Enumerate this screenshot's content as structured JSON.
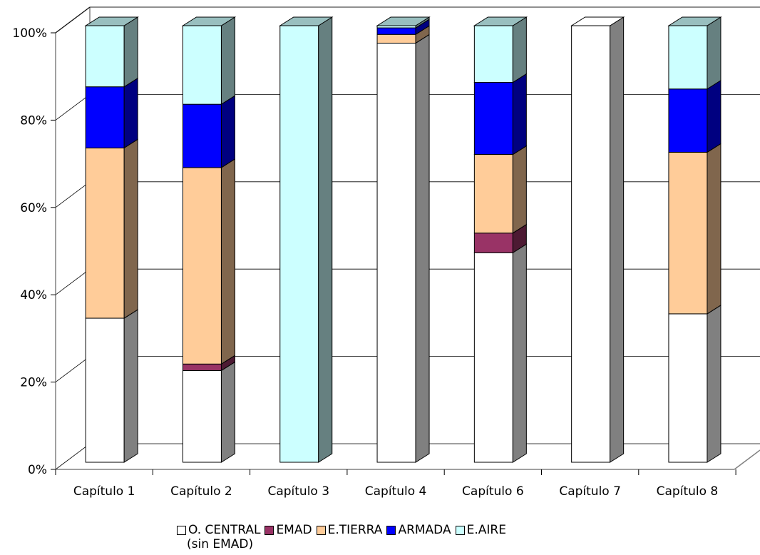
{
  "chart_data": {
    "type": "bar",
    "stacked": "percent",
    "style": "3d",
    "categories": [
      "Capítulo 1",
      "Capítulo 2",
      "Capítulo 3",
      "Capítulo 4",
      "Capítulo 6",
      "Capítulo 7",
      "Capítulo 8"
    ],
    "y_ticks": [
      "0%",
      "20%",
      "40%",
      "60%",
      "80%",
      "100%"
    ],
    "ylim": [
      0,
      100
    ],
    "grid": true,
    "legend_position": "bottom",
    "series": [
      {
        "name": "O. CENTRAL (sin EMAD)",
        "name_line1": "O. CENTRAL",
        "name_line2": "(sin EMAD)",
        "color": "#ffffff",
        "values": [
          33,
          21,
          0,
          96,
          48,
          100,
          34
        ]
      },
      {
        "name": "EMAD",
        "color": "#993366",
        "values": [
          0,
          1.5,
          0,
          0,
          4.5,
          0,
          0
        ]
      },
      {
        "name": "E.TIERRA",
        "color": "#ffcc99",
        "values": [
          39,
          45,
          0,
          2,
          18,
          0,
          37
        ]
      },
      {
        "name": "ARMADA",
        "color": "#0000ff",
        "values": [
          14,
          14.5,
          0,
          1.5,
          16.5,
          0,
          14.5
        ]
      },
      {
        "name": "E.AIRE",
        "color": "#ccffff",
        "values": [
          14,
          18,
          100,
          0.5,
          13,
          0,
          14.5
        ]
      }
    ]
  }
}
